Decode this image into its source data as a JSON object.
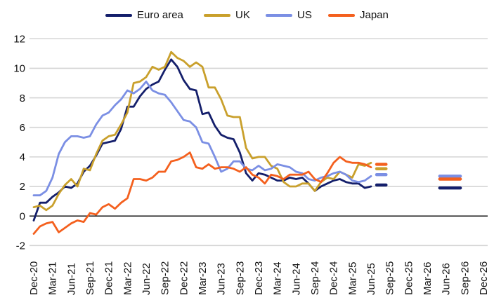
{
  "chart_data": {
    "type": "line",
    "title": "",
    "xlabel": "",
    "ylabel": "",
    "ylim": [
      -2,
      12
    ],
    "y_ticks": [
      -2,
      0,
      2,
      4,
      6,
      8,
      10,
      12
    ],
    "months_per_tick": 3,
    "x_tick_labels": [
      "Dec-20",
      "Mar-21",
      "Jun-21",
      "Sep-21",
      "Dec-21",
      "Mar-22",
      "Jun-22",
      "Sep-22",
      "Dec-22",
      "Mar-23",
      "Jun-23",
      "Sep-23",
      "Dec-23",
      "Mar-24",
      "Jun-24",
      "Sep-24",
      "Dec-24",
      "Mar-25",
      "Jun-25",
      "Sep-25",
      "Dec-25",
      "Mar-26",
      "Jun-26",
      "Sep-26",
      "Dec-26"
    ],
    "frequency": "monthly starting Dec-20",
    "series": [
      {
        "name": "Euro area",
        "color": "#141f6b",
        "values": [
          -0.3,
          0.9,
          0.9,
          1.3,
          1.6,
          2.0,
          1.9,
          2.2,
          3.0,
          3.4,
          4.1,
          4.9,
          5.0,
          5.1,
          5.9,
          7.4,
          7.4,
          8.1,
          8.6,
          8.9,
          9.1,
          9.9,
          10.6,
          10.1,
          9.2,
          8.6,
          8.5,
          6.9,
          7.0,
          6.1,
          5.5,
          5.3,
          5.2,
          4.3,
          2.9,
          2.4,
          2.9,
          2.8,
          2.6,
          2.4,
          2.4,
          2.6,
          2.5,
          2.6,
          2.2,
          1.7,
          2.0,
          2.2,
          2.4,
          2.5,
          2.3,
          2.2,
          2.2,
          1.9,
          2.0
        ]
      },
      {
        "name": "UK",
        "color": "#c9a02c",
        "values": [
          0.6,
          0.7,
          0.4,
          0.7,
          1.5,
          2.1,
          2.5,
          2.0,
          3.2,
          3.1,
          4.2,
          5.1,
          5.4,
          5.5,
          6.2,
          7.0,
          9.0,
          9.1,
          9.4,
          10.1,
          9.9,
          10.1,
          11.1,
          10.7,
          10.5,
          10.1,
          10.4,
          10.1,
          8.7,
          8.7,
          7.9,
          6.8,
          6.7,
          6.7,
          4.6,
          3.9,
          4.0,
          4.0,
          3.4,
          3.2,
          2.3,
          2.0,
          2.0,
          2.2,
          2.2,
          1.7,
          2.3,
          2.6,
          2.5,
          3.0,
          2.8,
          2.6,
          3.5,
          3.4,
          3.6
        ]
      },
      {
        "name": "US",
        "color": "#7b8fe4",
        "values": [
          1.4,
          1.4,
          1.7,
          2.6,
          4.2,
          5.0,
          5.4,
          5.4,
          5.3,
          5.4,
          6.2,
          6.8,
          7.0,
          7.5,
          7.9,
          8.5,
          8.3,
          8.6,
          9.1,
          8.5,
          8.3,
          8.2,
          7.7,
          7.1,
          6.5,
          6.4,
          6.0,
          5.0,
          4.9,
          4.0,
          3.0,
          3.2,
          3.7,
          3.7,
          3.2,
          3.1,
          3.4,
          3.1,
          3.2,
          3.5,
          3.4,
          3.3,
          3.0,
          2.9,
          2.5,
          2.4,
          2.6,
          2.7,
          2.9,
          3.0,
          2.8,
          2.4,
          2.3,
          2.4,
          2.7
        ]
      },
      {
        "name": "Japan",
        "color": "#f4601e",
        "values": [
          -1.2,
          -0.7,
          -0.5,
          -0.4,
          -1.1,
          -0.8,
          -0.5,
          -0.3,
          -0.4,
          0.2,
          0.1,
          0.6,
          0.8,
          0.5,
          0.9,
          1.2,
          2.5,
          2.5,
          2.4,
          2.6,
          3.0,
          3.0,
          3.7,
          3.8,
          4.0,
          4.3,
          3.3,
          3.2,
          3.5,
          3.2,
          3.3,
          3.3,
          3.2,
          3.0,
          3.3,
          2.8,
          2.6,
          2.2,
          2.8,
          2.7,
          2.5,
          2.8,
          2.8,
          2.8,
          3.0,
          2.5,
          2.3,
          2.9,
          3.6,
          4.0,
          3.7,
          3.6,
          3.6,
          3.5,
          3.3
        ]
      }
    ],
    "forecast_markers": [
      {
        "series": "Japan",
        "value": 3.5,
        "month_start": 54.9,
        "month_end": 56.4
      },
      {
        "series": "UK",
        "value": 3.2,
        "month_start": 54.9,
        "month_end": 56.4
      },
      {
        "series": "US",
        "value": 2.8,
        "month_start": 54.9,
        "month_end": 56.4
      },
      {
        "series": "Euro area",
        "value": 2.1,
        "month_start": 54.9,
        "month_end": 56.4
      },
      {
        "series": "US",
        "value": 2.7,
        "month_start": 65.0,
        "month_end": 68.3
      },
      {
        "series": "Japan",
        "value": 2.5,
        "month_start": 65.0,
        "month_end": 68.3
      },
      {
        "series": "Euro area",
        "value": 1.9,
        "month_start": 65.0,
        "month_end": 68.3
      }
    ],
    "layout": {
      "legend_position": "top",
      "grid": "horizontal",
      "grid_color": "#d4d4d4",
      "zero_axis_color": "#000000",
      "tick_text_color": "#111111",
      "x_label_rotation_deg": -90
    }
  }
}
